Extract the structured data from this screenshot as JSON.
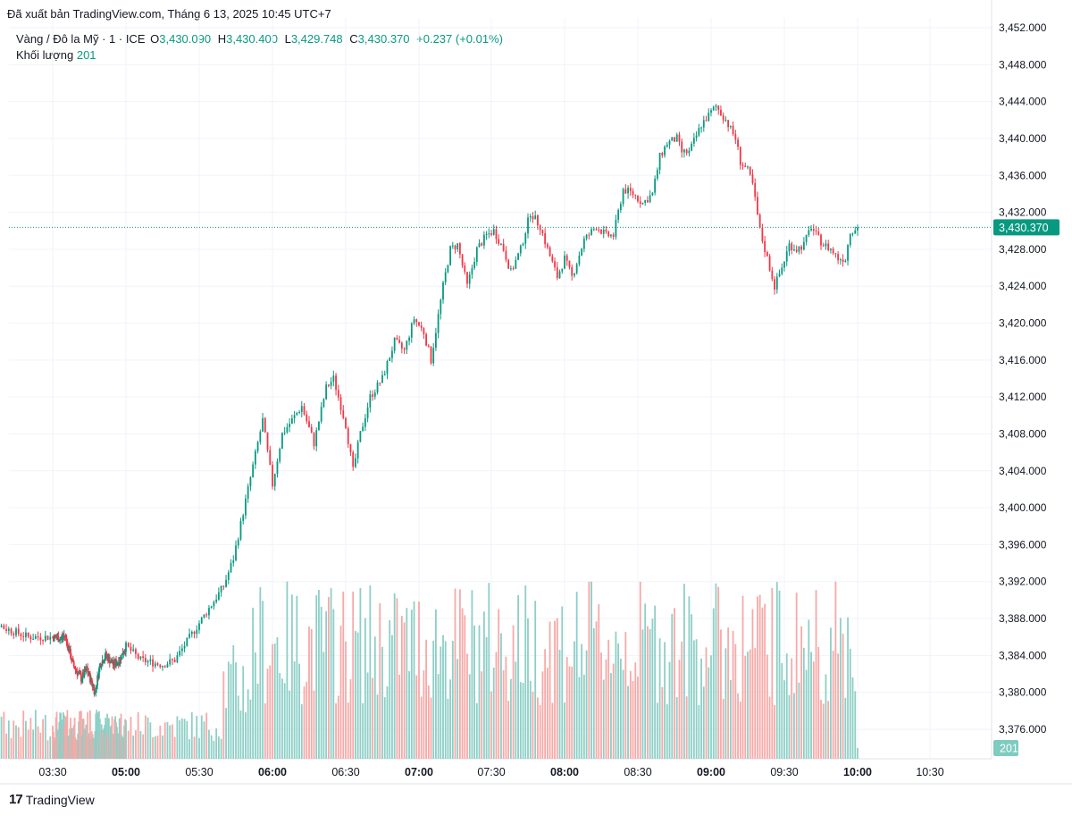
{
  "header": {
    "published": "Đã xuất bản TradingView.com, Tháng 6 13, 2025 10:45 UTC+7"
  },
  "legend": {
    "symbol": "Vàng / Đô la Mỹ · 1 · ICE",
    "o_label": "O",
    "o_value": "3,430.090",
    "h_label": "H",
    "h_value": "3,430.400",
    "l_label": "L",
    "l_value": "3,429.748",
    "c_label": "C",
    "c_value": "3,430.370",
    "change": "+0.237 (+0.01%)",
    "volume_label": "Khối lượng",
    "volume_value": "201"
  },
  "colors": {
    "up": "#089981",
    "down": "#f23645",
    "up_vol": "#8dcfc6",
    "down_vol": "#f7a9a7",
    "grid": "#f0f3fa"
  },
  "branding": {
    "logo_text": "TradingView",
    "logo_icon": "tradingview-logo-icon"
  },
  "chart_data": {
    "type": "candlestick",
    "title": "Vàng / Đô la Mỹ · 1 · ICE",
    "interval_minutes": 1,
    "y_axis": {
      "range": [
        3372.5,
        3453.2
      ],
      "ticks": [
        "3,452.000",
        "3,448.000",
        "3,444.000",
        "3,440.000",
        "3,436.000",
        "3,432.000",
        "3,428.000",
        "3,424.000",
        "3,420.000",
        "3,416.000",
        "3,412.000",
        "3,408.000",
        "3,404.000",
        "3,400.000",
        "3,396.000",
        "3,392.000",
        "3,388.000",
        "3,384.000",
        "3,380.000",
        "3,376.000"
      ],
      "tick_values": [
        3452,
        3448,
        3444,
        3440,
        3436,
        3432,
        3428,
        3424,
        3420,
        3416,
        3412,
        3408,
        3404,
        3400,
        3396,
        3392,
        3388,
        3384,
        3380,
        3376
      ]
    },
    "x_axis": {
      "ticks": [
        {
          "label": "03:30",
          "minutes": 210,
          "bold": false
        },
        {
          "label": "05:00",
          "minutes": 300,
          "bold": true
        },
        {
          "label": "05:30",
          "minutes": 330,
          "bold": false
        },
        {
          "label": "06:00",
          "minutes": 360,
          "bold": true
        },
        {
          "label": "06:30",
          "minutes": 390,
          "bold": false
        },
        {
          "label": "07:00",
          "minutes": 420,
          "bold": true
        },
        {
          "label": "07:30",
          "minutes": 450,
          "bold": false
        },
        {
          "label": "08:00",
          "minutes": 480,
          "bold": true
        },
        {
          "label": "08:30",
          "minutes": 510,
          "bold": false
        },
        {
          "label": "09:00",
          "minutes": 540,
          "bold": true
        },
        {
          "label": "09:30",
          "minutes": 570,
          "bold": false
        },
        {
          "label": "10:00",
          "minutes": 600,
          "bold": true
        },
        {
          "label": "10:30",
          "minutes": 630,
          "bold": false
        }
      ]
    },
    "last_price": 3430.37,
    "last_price_label": "3,430.370",
    "last_volume_label": "201",
    "price_path": [
      [
        180,
        3389.0
      ],
      [
        190,
        3387.0
      ],
      [
        200,
        3386.0
      ],
      [
        210,
        3386.0
      ],
      [
        220,
        3385.8
      ],
      [
        225,
        3386.2
      ],
      [
        235,
        3383.0
      ],
      [
        245,
        3381.5
      ],
      [
        252,
        3382.5
      ],
      [
        262,
        3380.0
      ],
      [
        268,
        3383.0
      ],
      [
        275,
        3384.0
      ],
      [
        285,
        3383.0
      ],
      [
        292,
        3383.5
      ],
      [
        300,
        3385.0
      ],
      [
        306,
        3383.5
      ],
      [
        315,
        3383.0
      ],
      [
        320,
        3383.5
      ],
      [
        340,
        3391.5
      ],
      [
        344,
        3394.5
      ],
      [
        346,
        3397.0
      ],
      [
        350,
        3402.0
      ],
      [
        356,
        3409.5
      ],
      [
        360,
        3402.5
      ],
      [
        364,
        3408.0
      ],
      [
        368,
        3409.5
      ],
      [
        372,
        3411.0
      ],
      [
        377,
        3407.0
      ],
      [
        382,
        3413.0
      ],
      [
        385,
        3414.0
      ],
      [
        390,
        3409.0
      ],
      [
        393,
        3404.0
      ],
      [
        396,
        3408.0
      ],
      [
        400,
        3412.0
      ],
      [
        405,
        3414.0
      ],
      [
        410,
        3418.0
      ],
      [
        414,
        3417.0
      ],
      [
        418,
        3420.5
      ],
      [
        422,
        3419.0
      ],
      [
        425,
        3416.0
      ],
      [
        430,
        3424.0
      ],
      [
        433,
        3428.0
      ],
      [
        436,
        3428.5
      ],
      [
        440,
        3424.0
      ],
      [
        444,
        3428.0
      ],
      [
        448,
        3429.5
      ],
      [
        451,
        3430.0
      ],
      [
        455,
        3428.0
      ],
      [
        458,
        3425.5
      ],
      [
        462,
        3428.0
      ],
      [
        466,
        3432.0
      ],
      [
        470,
        3430.5
      ],
      [
        473,
        3428.0
      ],
      [
        477,
        3425.0
      ],
      [
        480,
        3427.0
      ],
      [
        483,
        3425.0
      ],
      [
        488,
        3429.0
      ],
      [
        493,
        3430.5
      ],
      [
        497,
        3429.5
      ],
      [
        500,
        3429.5
      ],
      [
        504,
        3434.5
      ],
      [
        508,
        3434.0
      ],
      [
        512,
        3433.0
      ],
      [
        516,
        3434.0
      ],
      [
        519,
        3438.0
      ],
      [
        522,
        3439.5
      ],
      [
        526,
        3440.0
      ],
      [
        528,
        3438.5
      ],
      [
        531,
        3438.5
      ],
      [
        536,
        3441.5
      ],
      [
        539,
        3442.5
      ],
      [
        542,
        3443.5
      ],
      [
        546,
        3442.0
      ],
      [
        550,
        3440.0
      ],
      [
        552,
        3437.5
      ],
      [
        555,
        3436.5
      ],
      [
        557,
        3435.0
      ],
      [
        560,
        3430.0
      ],
      [
        563,
        3427.0
      ],
      [
        566,
        3424.0
      ],
      [
        569,
        3426.0
      ],
      [
        572,
        3428.5
      ],
      [
        575,
        3428.0
      ],
      [
        578,
        3428.5
      ],
      [
        581,
        3430.5
      ],
      [
        583,
        3429.5
      ],
      [
        586,
        3428.5
      ],
      [
        589,
        3428.0
      ],
      [
        592,
        3427.0
      ],
      [
        595,
        3427.0
      ],
      [
        597,
        3430.0
      ],
      [
        600,
        3430.37
      ]
    ],
    "volume": {
      "max": 600,
      "note": "per-minute volume bars, overlaid at bottom of price pane; last bar 201"
    }
  }
}
